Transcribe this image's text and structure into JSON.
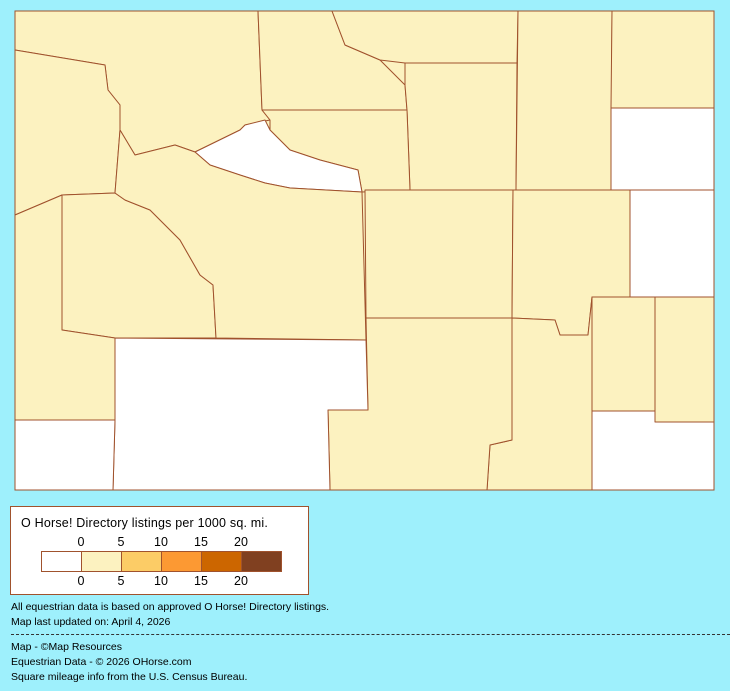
{
  "legend": {
    "title": "O Horse! Directory listings per 1000 sq. mi.",
    "top_ticks": [
      "0",
      "5",
      "10",
      "15",
      "20"
    ],
    "bottom_ticks": [
      "0",
      "5",
      "10",
      "15",
      "20"
    ],
    "colors": [
      "#ffffff",
      "#fcf2c0",
      "#fccc66",
      "#fc9933",
      "#cc6600",
      "#804020"
    ]
  },
  "map_colors": {
    "zero": "#ffffff",
    "tier1": "#fcf2c0",
    "border": "#a0522d",
    "background": "#9ef0fc"
  },
  "notes": {
    "line1": "All equestrian data is based on approved O Horse! Directory listings.",
    "line2": "Map last updated on: April 4, 2026"
  },
  "credits": {
    "map": "Map - ©Map Resources",
    "data": "Equestrian Data - © 2026 OHorse.com",
    "census": "Square mileage info from the U.S. Census Bureau."
  }
}
